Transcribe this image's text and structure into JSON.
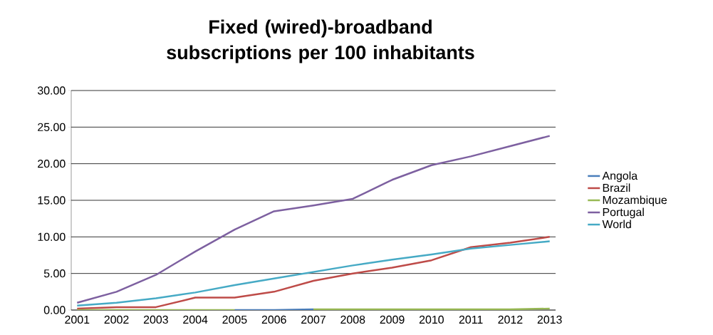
{
  "chart_data": {
    "type": "line",
    "title": "Fixed (wired)-broadband subscriptions per 100 inhabitants",
    "categories": [
      "2001",
      "2002",
      "2003",
      "2004",
      "2005",
      "2006",
      "2007",
      "2008",
      "2009",
      "2010",
      "2011",
      "2012",
      "2013"
    ],
    "series": [
      {
        "name": "Angola",
        "color": "#4a7ebb",
        "values": [
          null,
          null,
          null,
          null,
          0,
          0,
          0.1,
          null,
          null,
          null,
          null,
          null,
          null
        ]
      },
      {
        "name": "Brazil",
        "color": "#be4b48",
        "values": [
          0.2,
          0.4,
          0.4,
          1.7,
          1.7,
          2.5,
          4.0,
          5.0,
          5.8,
          6.8,
          8.6,
          9.2,
          10.0
        ]
      },
      {
        "name": "Mozambique",
        "color": "#98b954",
        "values": [
          0,
          0,
          0,
          0,
          0,
          null,
          0.1,
          0.1,
          0.1,
          0.1,
          0.1,
          0.1,
          0.2
        ]
      },
      {
        "name": "Portugal",
        "color": "#7d60a0",
        "values": [
          1.0,
          2.5,
          4.8,
          8.0,
          11.0,
          13.5,
          14.3,
          15.2,
          17.8,
          19.8,
          21.0,
          22.4,
          23.8
        ]
      },
      {
        "name": "World",
        "color": "#46aac5",
        "values": [
          0.6,
          1.0,
          1.6,
          2.4,
          3.4,
          4.3,
          5.2,
          6.1,
          6.9,
          7.6,
          8.4,
          8.9,
          9.4
        ]
      }
    ],
    "ylim": [
      0,
      30
    ],
    "yticks": [
      {
        "value": 0,
        "label": "0.00"
      },
      {
        "value": 5,
        "label": "5.00"
      },
      {
        "value": 10,
        "label": "10.00"
      },
      {
        "value": 15,
        "label": "15.00"
      },
      {
        "value": 20,
        "label": "20.00"
      },
      {
        "value": 25,
        "label": "25.00"
      },
      {
        "value": 30,
        "label": "30.00"
      }
    ],
    "grid": "y",
    "legend": "right",
    "marker": "none",
    "line_style": "solid"
  }
}
